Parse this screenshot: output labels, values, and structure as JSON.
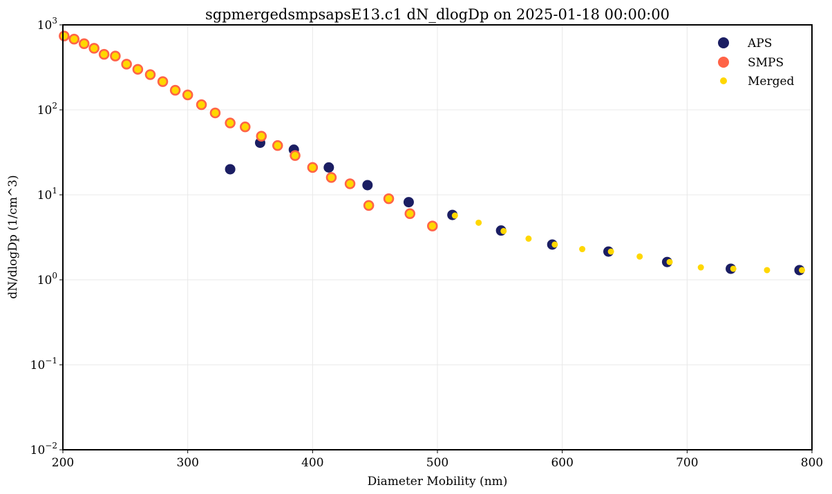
{
  "colors": {
    "aps": "#1b1e63",
    "smps_face": "#ffd000",
    "smps_edge": "#ff6347",
    "merged": "#ffd700",
    "grid": "#e8e8e8"
  },
  "chart_data": {
    "type": "scatter",
    "title": "sgpmergedsmpsapsE13.c1 dN_dlogDp on 2025-01-18 00:00:00",
    "xlabel": "Diameter Mobility (nm)",
    "ylabel": "dN/dlogDp (1/cm^3)",
    "xlim": [
      200,
      800
    ],
    "ylim": [
      0.01,
      1000
    ],
    "yscale": "log",
    "grid": true,
    "legend_position": "top-right",
    "x_ticks": [
      {
        "value": 200,
        "label": "200"
      },
      {
        "value": 300,
        "label": "300"
      },
      {
        "value": 400,
        "label": "400"
      },
      {
        "value": 500,
        "label": "500"
      },
      {
        "value": 600,
        "label": "600"
      },
      {
        "value": 700,
        "label": "700"
      },
      {
        "value": 800,
        "label": "800"
      }
    ],
    "y_ticks": [
      {
        "value": 1000,
        "base": "10",
        "exp": "3"
      },
      {
        "value": 100,
        "base": "10",
        "exp": "2"
      },
      {
        "value": 10,
        "base": "10",
        "exp": "1"
      },
      {
        "value": 1,
        "base": "10",
        "exp": "0"
      },
      {
        "value": 0.1,
        "base": "10",
        "exp": "−1"
      },
      {
        "value": 0.01,
        "base": "10",
        "exp": "−2"
      }
    ],
    "series": [
      {
        "name": "APS",
        "x": [
          334,
          358,
          385,
          413,
          444,
          477,
          512,
          551,
          592,
          637,
          684,
          735,
          790
        ],
        "y": [
          20,
          41,
          34,
          21,
          13,
          8.2,
          5.8,
          3.8,
          2.6,
          2.15,
          1.62,
          1.35,
          1.3
        ]
      },
      {
        "name": "SMPS",
        "x": [
          201,
          209,
          217,
          225,
          233,
          242,
          251,
          260,
          270,
          280,
          290,
          300,
          311,
          322,
          334,
          346,
          359,
          372,
          386,
          400,
          415,
          430,
          445,
          461,
          478,
          496
        ],
        "y": [
          740,
          680,
          600,
          530,
          450,
          430,
          345,
          300,
          260,
          215,
          170,
          150,
          115,
          92,
          70,
          63,
          49,
          38,
          29,
          21,
          16,
          13.5,
          7.5,
          9,
          6,
          4.3
        ]
      },
      {
        "name": "Merged",
        "x": [
          201,
          209,
          217,
          225,
          233,
          242,
          251,
          260,
          270,
          280,
          290,
          300,
          311,
          322,
          334,
          346,
          359,
          372,
          386,
          400,
          415,
          430,
          445,
          461,
          478,
          496,
          514,
          533,
          553,
          573,
          594,
          616,
          639,
          662,
          686,
          711,
          737,
          764,
          792
        ],
        "y": [
          740,
          680,
          600,
          530,
          450,
          430,
          345,
          300,
          260,
          215,
          170,
          150,
          115,
          92,
          70,
          63,
          49,
          38,
          29,
          21,
          16,
          13.5,
          7.5,
          9,
          6,
          4.3,
          5.7,
          4.7,
          3.75,
          3.05,
          2.6,
          2.3,
          2.15,
          1.88,
          1.62,
          1.4,
          1.35,
          1.3,
          1.3
        ]
      }
    ]
  }
}
